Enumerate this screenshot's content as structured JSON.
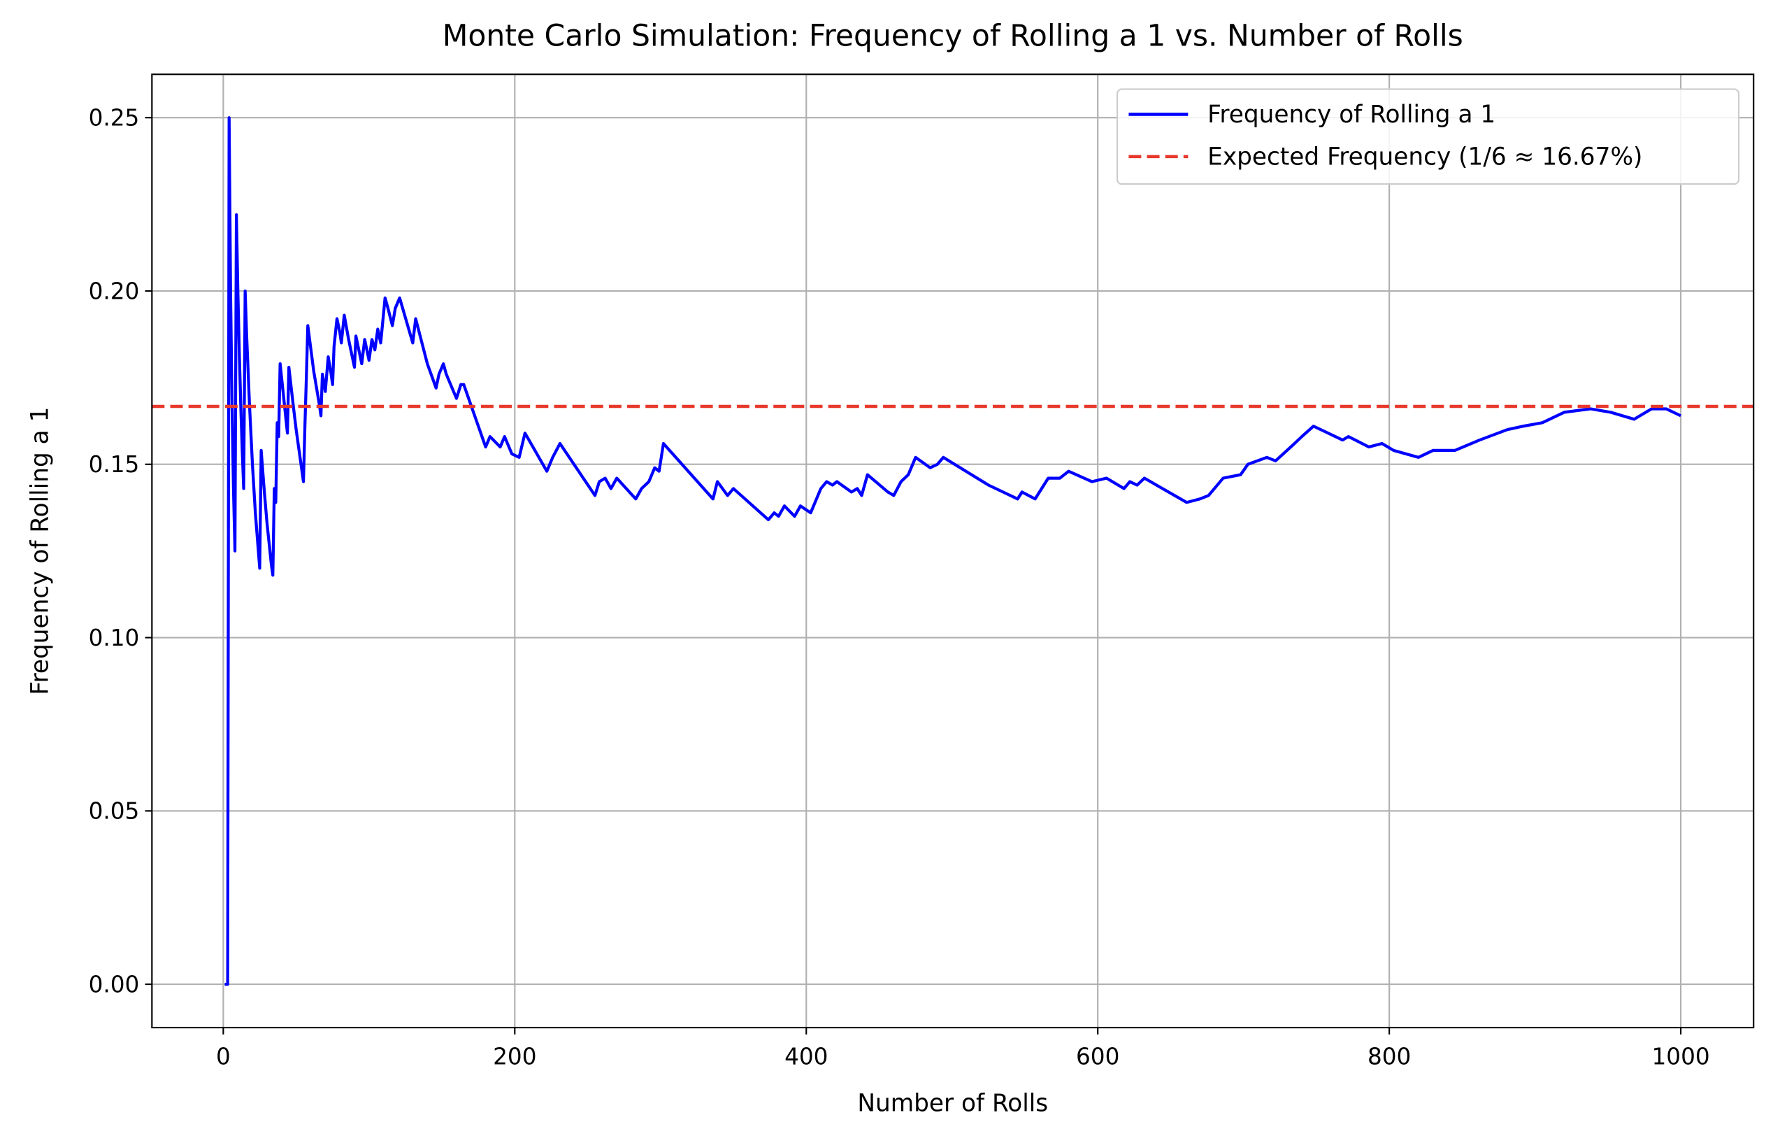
{
  "chart_data": {
    "type": "line",
    "title": "Monte Carlo Simulation: Frequency of Rolling a 1 vs. Number of Rolls",
    "x_label": "Number of Rolls",
    "y_label": "Frequency of Rolling a 1",
    "xlim": [
      -48.95,
      1049.95
    ],
    "ylim": [
      -0.0125,
      0.2625
    ],
    "xticks": [
      0,
      200,
      400,
      600,
      800,
      1000
    ],
    "yticks": [
      {
        "value": 0,
        "label": "0.00"
      },
      {
        "value": 0.05,
        "label": "0.05"
      },
      {
        "value": 0.1,
        "label": "0.10"
      },
      {
        "value": 0.15,
        "label": "0.15"
      },
      {
        "value": 0.2,
        "label": "0.20"
      },
      {
        "value": 0.25,
        "label": "0.25"
      }
    ],
    "grid": true,
    "legend": "upper right",
    "series": [
      {
        "name": "Frequency of Rolling a 1",
        "color": "#0000ff",
        "style": "solid",
        "x": [
          1,
          2,
          3,
          4,
          5,
          6,
          7,
          8,
          9,
          10,
          11,
          12,
          13,
          14,
          15,
          16,
          18,
          20,
          22,
          25,
          26,
          28,
          30,
          33,
          34,
          35,
          36,
          37,
          38,
          39,
          41,
          43,
          44,
          45,
          48,
          50,
          52,
          55,
          56,
          57,
          58,
          62,
          66,
          67,
          68,
          70,
          72,
          74,
          75,
          76,
          78,
          80,
          81,
          83,
          86,
          88,
          90,
          91,
          95,
          97,
          100,
          102,
          104,
          106,
          108,
          111,
          113,
          116,
          118,
          121,
          130,
          132,
          140,
          146,
          148,
          151,
          153,
          160,
          163,
          165,
          180,
          183,
          190,
          193,
          198,
          203,
          207,
          222,
          226,
          231,
          255,
          258,
          262,
          266,
          270,
          283,
          287,
          292,
          296,
          299,
          302,
          336,
          339,
          346,
          350,
          374,
          378,
          381,
          385,
          392,
          396,
          403,
          407,
          410,
          414,
          418,
          421,
          431,
          435,
          438,
          442,
          456,
          460,
          465,
          470,
          475,
          485,
          490,
          494,
          525,
          535,
          545,
          548,
          557,
          566,
          574,
          580,
          596,
          606,
          618,
          622,
          627,
          632,
          661,
          670,
          676,
          686,
          698,
          703,
          716,
          722,
          735,
          740,
          748,
          768,
          772,
          786,
          795,
          803,
          820,
          830,
          845,
          862,
          881,
          892,
          905,
          920,
          938,
          952,
          968,
          980,
          990,
          1000
        ],
        "values": [
          0,
          0,
          0,
          0.25,
          0.2,
          0.167,
          0.143,
          0.125,
          0.222,
          0.2,
          0.182,
          0.167,
          0.154,
          0.143,
          0.2,
          0.1875,
          0.167,
          0.15,
          0.136,
          0.12,
          0.154,
          0.143,
          0.133,
          0.121,
          0.118,
          0.143,
          0.139,
          0.162,
          0.158,
          0.179,
          0.171,
          0.163,
          0.159,
          0.178,
          0.167,
          0.16,
          0.154,
          0.145,
          0.161,
          0.175,
          0.19,
          0.177,
          0.167,
          0.164,
          0.176,
          0.171,
          0.181,
          0.176,
          0.173,
          0.184,
          0.192,
          0.188,
          0.185,
          0.193,
          0.186,
          0.182,
          0.178,
          0.187,
          0.179,
          0.186,
          0.18,
          0.186,
          0.183,
          0.189,
          0.185,
          0.198,
          0.195,
          0.19,
          0.195,
          0.198,
          0.185,
          0.192,
          0.179,
          0.172,
          0.176,
          0.179,
          0.176,
          0.169,
          0.173,
          0.173,
          0.155,
          0.158,
          0.155,
          0.158,
          0.153,
          0.152,
          0.159,
          0.148,
          0.152,
          0.156,
          0.141,
          0.145,
          0.146,
          0.143,
          0.146,
          0.14,
          0.143,
          0.145,
          0.149,
          0.148,
          0.156,
          0.14,
          0.145,
          0.141,
          0.143,
          0.134,
          0.136,
          0.135,
          0.138,
          0.135,
          0.138,
          0.136,
          0.14,
          0.143,
          0.145,
          0.144,
          0.145,
          0.142,
          0.143,
          0.141,
          0.147,
          0.142,
          0.141,
          0.145,
          0.147,
          0.152,
          0.149,
          0.15,
          0.152,
          0.144,
          0.142,
          0.14,
          0.142,
          0.14,
          0.146,
          0.146,
          0.148,
          0.145,
          0.146,
          0.143,
          0.145,
          0.144,
          0.146,
          0.139,
          0.14,
          0.141,
          0.146,
          0.147,
          0.15,
          0.152,
          0.151,
          0.156,
          0.158,
          0.161,
          0.157,
          0.158,
          0.155,
          0.156,
          0.154,
          0.152,
          0.154,
          0.154,
          0.157,
          0.16,
          0.161,
          0.162,
          0.165,
          0.166,
          0.165,
          0.163,
          0.166,
          0.166,
          0.164
        ]
      },
      {
        "name": "Expected Frequency (1/6 ≈ 16.67%)",
        "color": "#e8382b",
        "style": "dashed",
        "kind": "hline",
        "value": 0.1667
      }
    ]
  }
}
